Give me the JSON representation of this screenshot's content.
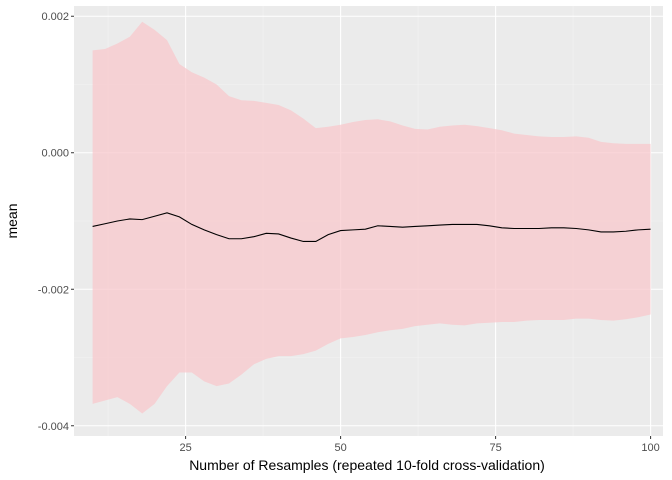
{
  "chart_data": {
    "type": "line",
    "title": "",
    "xlabel": "Number of Resamples (repeated 10-fold cross-validation)",
    "ylabel": "mean",
    "xlim": [
      7,
      102
    ],
    "ylim": [
      -0.00415,
      0.00215
    ],
    "x_ticks": [
      25,
      50,
      75,
      100
    ],
    "x_tick_labels": [
      "25",
      "50",
      "75",
      "100"
    ],
    "y_ticks": [
      -0.004,
      -0.002,
      0.0,
      0.002
    ],
    "y_tick_labels": [
      "-0.004",
      "-0.002",
      "0.000",
      "0.002"
    ],
    "grid": true,
    "legend": "none",
    "colors": {
      "panel_background": "#ebebeb",
      "grid_major": "#ffffff",
      "grid_minor": "#f4f4f4",
      "line": "#000000",
      "ribbon": "#f8c8cc"
    },
    "series": [
      {
        "x": [
          10,
          12,
          14,
          16,
          18,
          20,
          22,
          24,
          26,
          28,
          30,
          32,
          34,
          36,
          38,
          40,
          42,
          44,
          46,
          48,
          50,
          52,
          54,
          56,
          58,
          60,
          62,
          64,
          66,
          68,
          70,
          72,
          74,
          76,
          78,
          80,
          82,
          84,
          86,
          88,
          90,
          92,
          94,
          96,
          98,
          100
        ],
        "y": [
          -0.00108,
          -0.00104,
          -0.001,
          -0.00097,
          -0.00098,
          -0.00093,
          -0.00088,
          -0.00094,
          -0.00105,
          -0.00113,
          -0.0012,
          -0.00126,
          -0.00126,
          -0.00123,
          -0.00118,
          -0.00119,
          -0.00125,
          -0.0013,
          -0.0013,
          -0.0012,
          -0.00114,
          -0.00113,
          -0.00112,
          -0.00107,
          -0.00108,
          -0.00109,
          -0.00108,
          -0.00107,
          -0.00106,
          -0.00105,
          -0.00105,
          -0.00105,
          -0.00107,
          -0.0011,
          -0.00111,
          -0.00111,
          -0.00111,
          -0.0011,
          -0.0011,
          -0.00111,
          -0.00113,
          -0.00116,
          -0.00116,
          -0.00115,
          -0.00113,
          -0.00112
        ],
        "lower": [
          -0.00368,
          -0.00363,
          -0.00358,
          -0.00368,
          -0.00382,
          -0.00368,
          -0.00342,
          -0.00322,
          -0.00322,
          -0.00335,
          -0.00342,
          -0.00338,
          -0.00325,
          -0.0031,
          -0.00302,
          -0.00298,
          -0.00298,
          -0.00295,
          -0.0029,
          -0.0028,
          -0.00272,
          -0.0027,
          -0.00267,
          -0.00263,
          -0.0026,
          -0.00258,
          -0.00254,
          -0.00252,
          -0.0025,
          -0.00252,
          -0.00253,
          -0.0025,
          -0.00249,
          -0.00248,
          -0.00248,
          -0.00246,
          -0.00245,
          -0.00245,
          -0.00245,
          -0.00243,
          -0.00243,
          -0.00245,
          -0.00246,
          -0.00244,
          -0.00241,
          -0.00237
        ],
        "upper": [
          0.0015,
          0.00152,
          0.0016,
          0.0017,
          0.00192,
          0.0018,
          0.00165,
          0.0013,
          0.00118,
          0.0011,
          0.001,
          0.00083,
          0.00077,
          0.00076,
          0.00073,
          0.0007,
          0.00062,
          0.0005,
          0.00036,
          0.00038,
          0.00041,
          0.00045,
          0.00048,
          0.00049,
          0.00046,
          0.0004,
          0.00035,
          0.00034,
          0.00038,
          0.0004,
          0.00041,
          0.00039,
          0.00036,
          0.00033,
          0.00028,
          0.00026,
          0.00024,
          0.00023,
          0.00023,
          0.00024,
          0.00022,
          0.00016,
          0.00014,
          0.00013,
          0.00013,
          0.00013
        ]
      }
    ]
  }
}
